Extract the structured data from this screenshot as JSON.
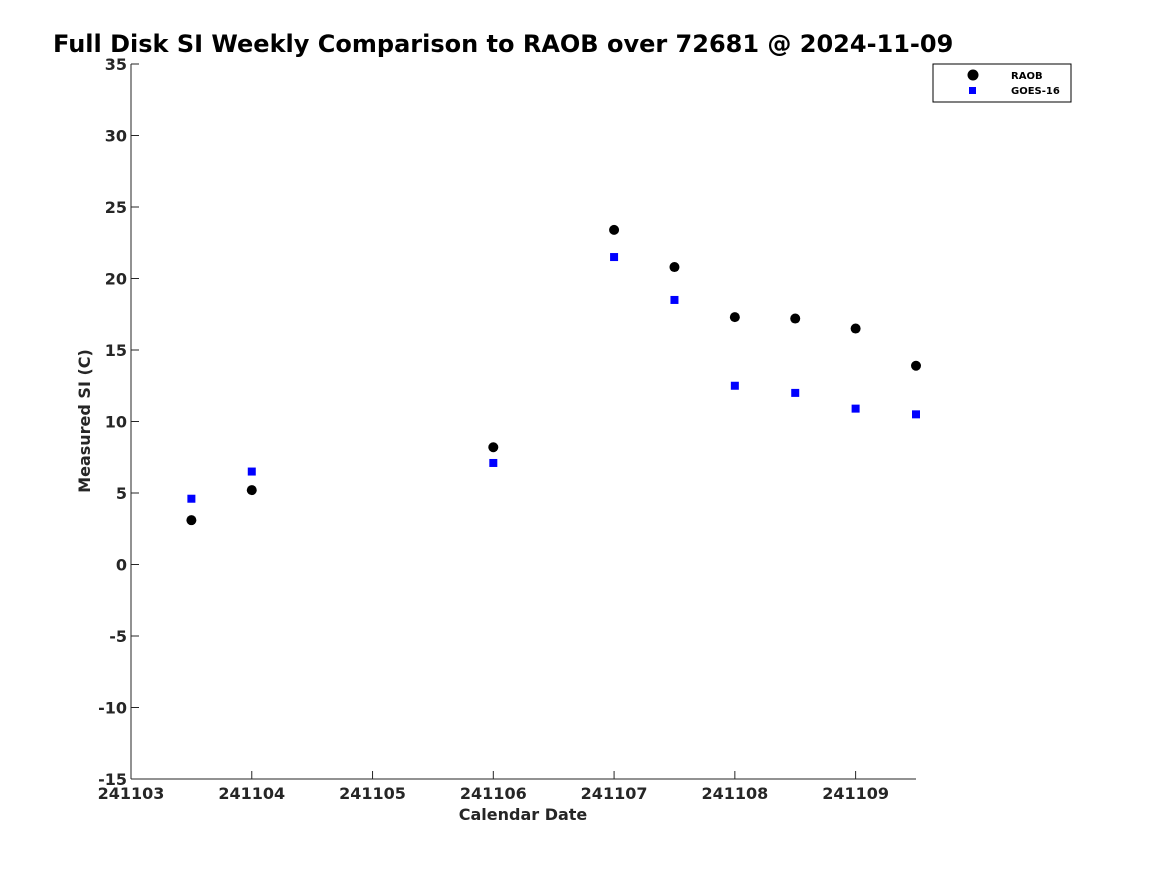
{
  "chart_data": {
    "type": "scatter",
    "title": "Full Disk SI Weekly Comparison to RAOB over 72681 @ 2024-11-09",
    "xlabel": "Calendar Date",
    "ylabel": "Measured SI (C)",
    "xlim": [
      "241103",
      "241109.5"
    ],
    "ylim": [
      -15,
      35
    ],
    "x_ticks": [
      "241103",
      "241104",
      "241105",
      "241106",
      "241107",
      "241108",
      "241109"
    ],
    "y_ticks": [
      35,
      30,
      25,
      20,
      15,
      10,
      5,
      0,
      -5,
      -10,
      -15
    ],
    "grid": false,
    "legend_position": "top-right",
    "series": [
      {
        "name": "RAOB",
        "marker": "circle",
        "color": "#000000",
        "x": [
          "241103.5",
          "241104",
          "241106",
          "241107",
          "241107.5",
          "241108",
          "241108.5",
          "241109",
          "241109.5"
        ],
        "y": [
          3.1,
          5.2,
          8.2,
          23.4,
          20.8,
          17.3,
          17.2,
          16.5,
          13.9
        ]
      },
      {
        "name": "GOES-16",
        "marker": "square",
        "color": "#0000ff",
        "x": [
          "241103.5",
          "241104",
          "241106",
          "241107",
          "241107.5",
          "241108",
          "241108.5",
          "241109",
          "241109.5"
        ],
        "y": [
          4.6,
          6.5,
          7.1,
          21.5,
          18.5,
          12.5,
          12.0,
          10.9,
          10.5
        ]
      }
    ]
  }
}
